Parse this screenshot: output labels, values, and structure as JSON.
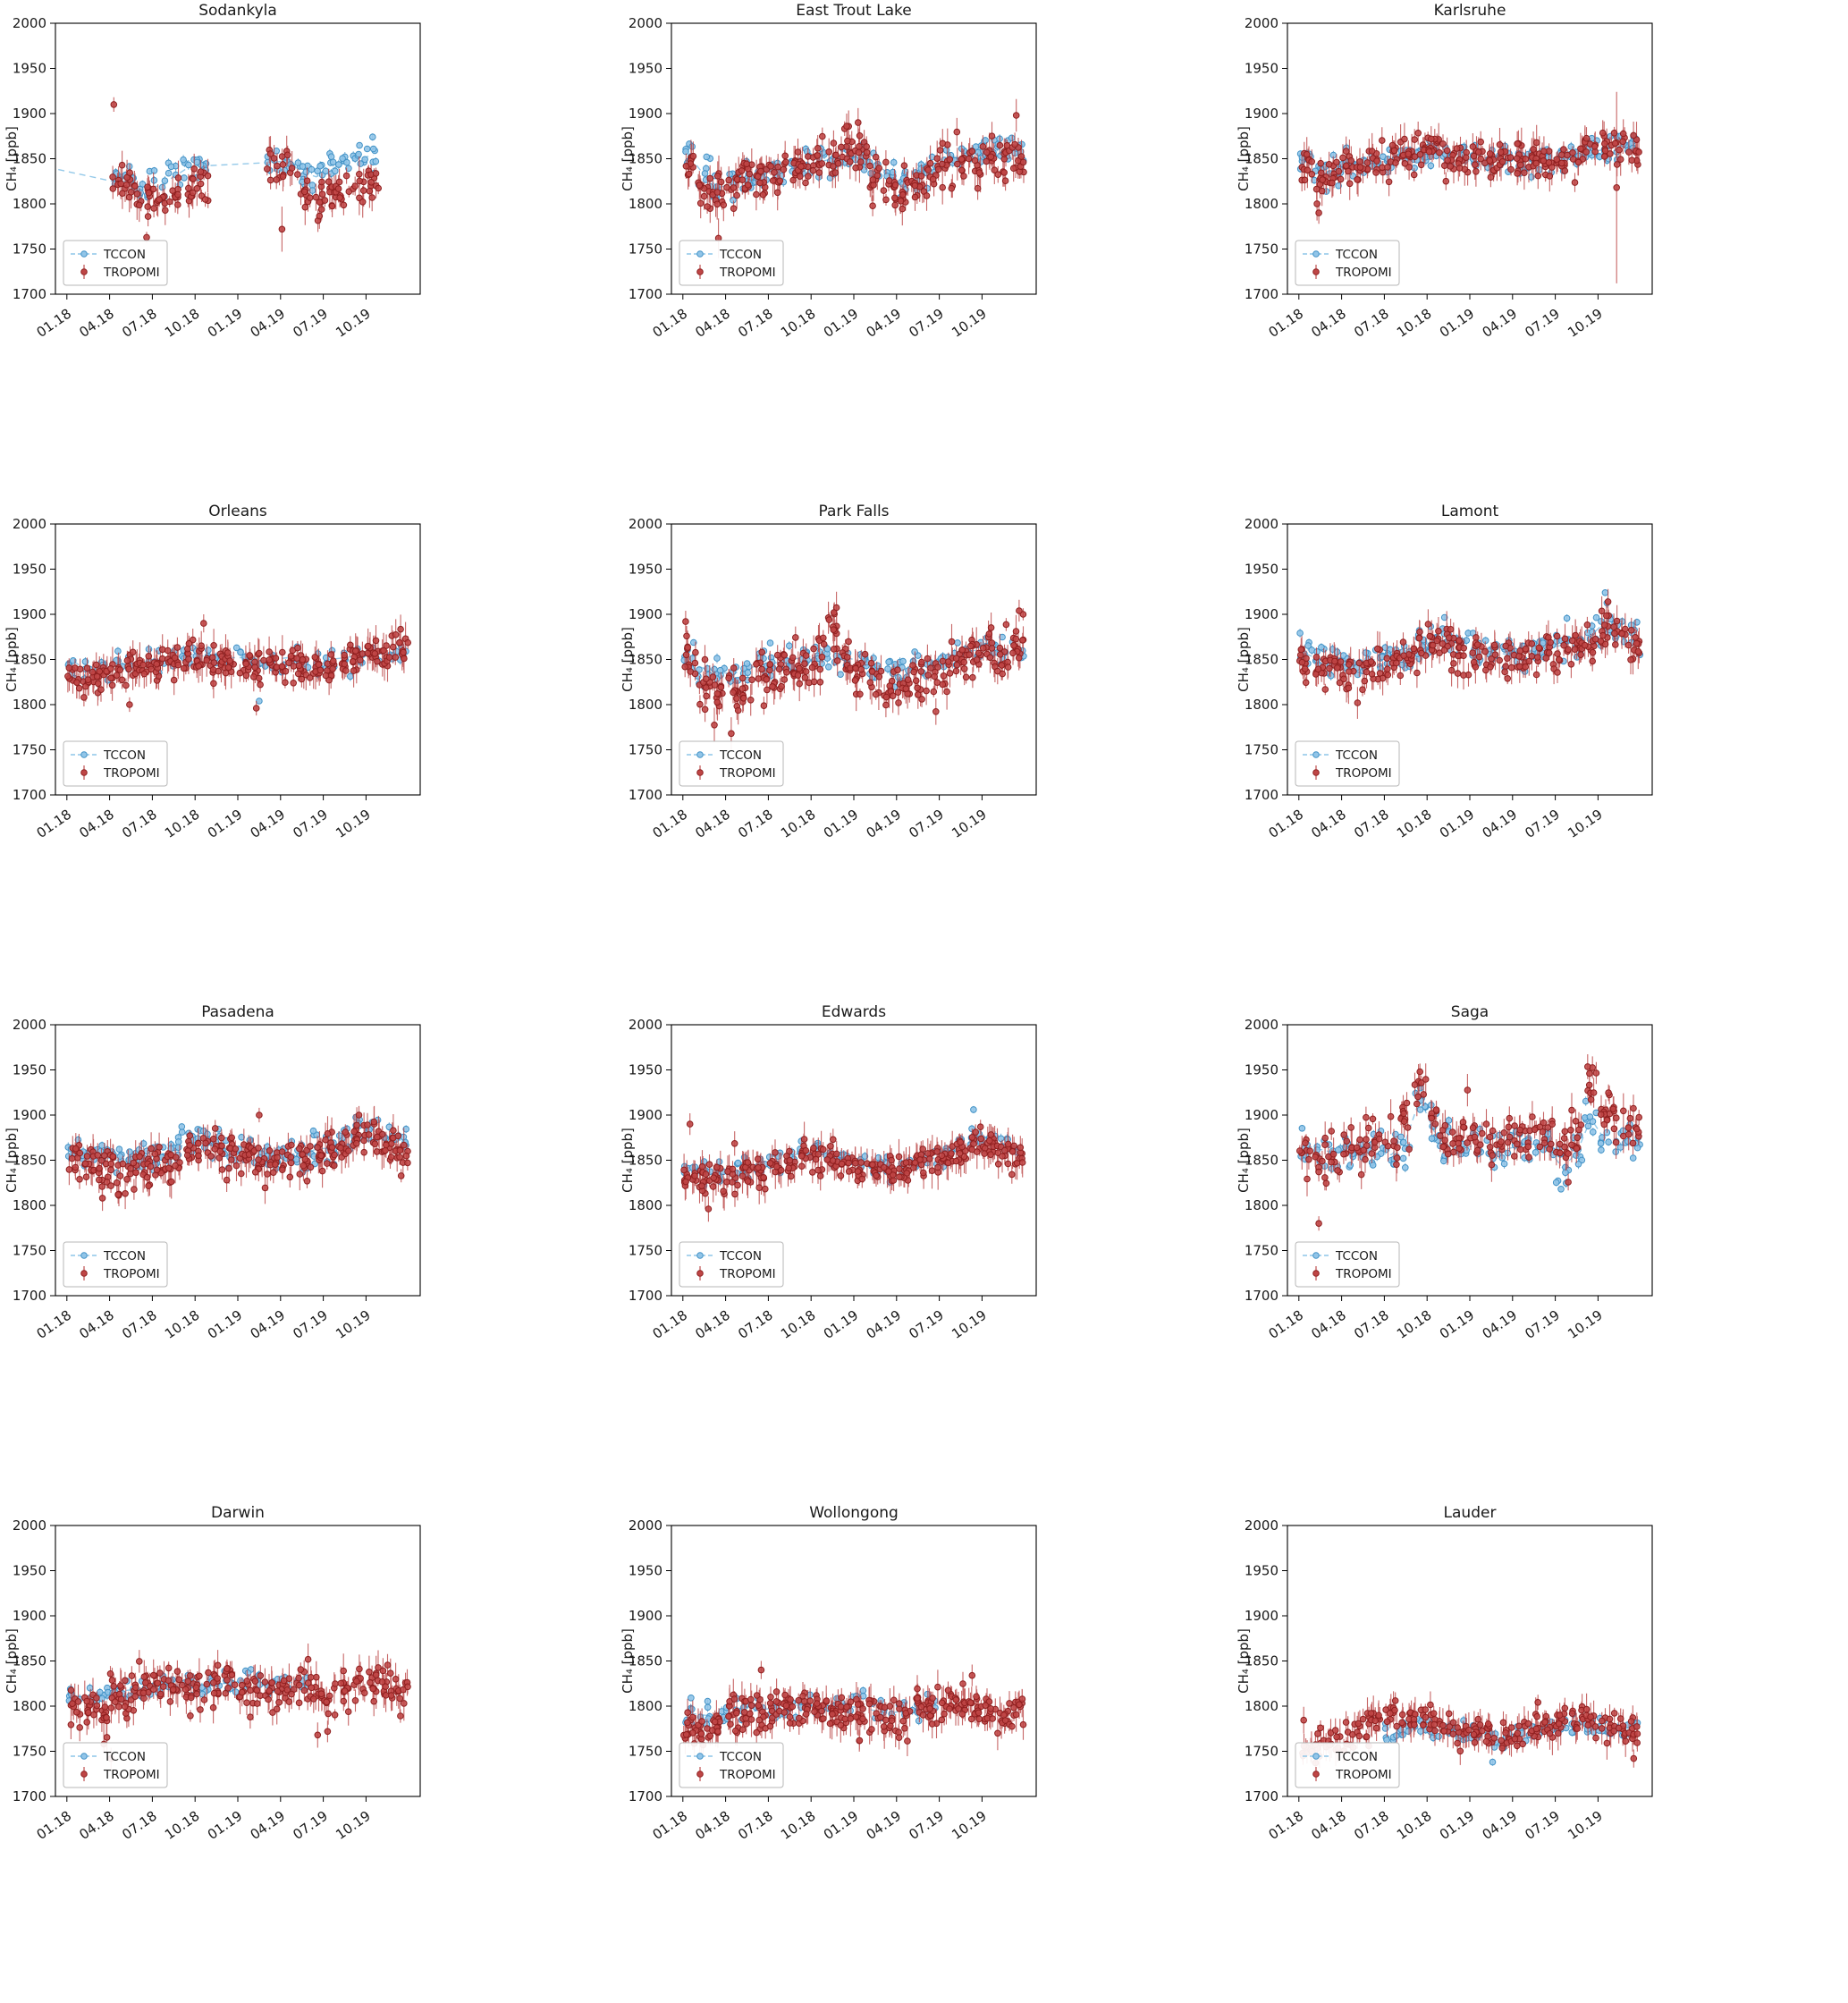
{
  "figure": {
    "background": "#ffffff",
    "rows": 4,
    "cols": 3
  },
  "legend": {
    "tccon_label": "TCCON",
    "tropomi_label": "TROPOMI"
  },
  "chart_data": {
    "type": "scatter",
    "ylabel": "CH₄ [ppb]",
    "ylim": [
      1700,
      2000
    ],
    "yticks": [
      1700,
      1750,
      1800,
      1850,
      1900,
      1950,
      2000
    ],
    "xtick_labels": [
      "01.18",
      "04.18",
      "07.18",
      "10.18",
      "01.19",
      "04.19",
      "07.19",
      "10.19"
    ],
    "xtick_months": [
      0,
      3,
      6,
      9,
      12,
      15,
      18,
      21
    ],
    "x_month_range": [
      -0.8,
      24.8
    ],
    "grid": false,
    "legend_position": "lower-left",
    "series_names": [
      "TCCON",
      "TROPOMI"
    ],
    "colors": {
      "tccon_fill": "#92c5e8",
      "tccon_edge": "#4292c6",
      "tccon_line": "#8ec6e8",
      "tropomi_fill": "#bf4646",
      "tropomi_edge": "#8f1f1f",
      "tropomi_err": "#b94040",
      "axis": "#000000",
      "text": "#1a1a1a"
    },
    "note": "monthly mean CH4 [ppb] per station, index 0 = Jan 2018 .. 23 = Dec 2019; null = no data that month",
    "stations": [
      {
        "name": "Sodankyla",
        "tccon_monthly": [
          null,
          null,
          null,
          1824,
          1826,
          1818,
          1820,
          1830,
          1840,
          1842,
          null,
          null,
          null,
          null,
          1846,
          1848,
          1835,
          1830,
          1838,
          1845,
          1850,
          1854,
          null,
          null
        ],
        "tropomi_monthly": [
          null,
          null,
          null,
          1822,
          1820,
          1808,
          1806,
          1815,
          1822,
          1820,
          null,
          null,
          null,
          null,
          1848,
          1840,
          1815,
          1805,
          1808,
          1815,
          1820,
          1822,
          null,
          null
        ],
        "tccon_sd": 9,
        "tropomi_sd": 11,
        "tccon_n": 9,
        "tropomi_n": 11,
        "line_start": [
          -0.6,
          1838
        ],
        "outliers": [
          {
            "m": 3.3,
            "y": 1910,
            "e": 8
          },
          {
            "m": 5.6,
            "y": 1763,
            "e": 6
          },
          {
            "m": 15.1,
            "y": 1772,
            "e": 25
          }
        ]
      },
      {
        "name": "East Trout Lake",
        "tccon_monthly": [
          1852,
          1832,
          1818,
          1822,
          1828,
          1832,
          1836,
          1840,
          1844,
          1846,
          1850,
          1852,
          1854,
          1846,
          1832,
          1824,
          1828,
          1838,
          1846,
          1852,
          1856,
          1858,
          1860,
          1862
        ],
        "tropomi_monthly": [
          1840,
          1818,
          1812,
          1818,
          1826,
          1830,
          1834,
          1836,
          1840,
          1842,
          1848,
          1862,
          1858,
          1826,
          1812,
          1818,
          1824,
          1834,
          1840,
          1845,
          1848,
          1850,
          1852,
          1848
        ],
        "tccon_sd": 9,
        "tropomi_sd": 12,
        "tccon_n": 10,
        "tropomi_n": 13,
        "outliers": [
          {
            "m": 2.5,
            "y": 1762,
            "e": 22
          },
          {
            "m": 11.5,
            "y": 1886,
            "e": 14
          },
          {
            "m": 12.3,
            "y": 1890,
            "e": 16
          },
          {
            "m": 23.4,
            "y": 1898,
            "e": 18
          }
        ]
      },
      {
        "name": "Karlsruhe",
        "tccon_monthly": [
          1848,
          1832,
          1838,
          1842,
          1845,
          1848,
          1850,
          1852,
          1856,
          1858,
          1854,
          1850,
          1848,
          1846,
          1848,
          1850,
          1852,
          1850,
          1852,
          1855,
          1858,
          1860,
          1864,
          1866
        ],
        "tropomi_monthly": [
          1845,
          1825,
          1835,
          1840,
          1842,
          1846,
          1850,
          1856,
          1858,
          1860,
          1852,
          1850,
          1850,
          1846,
          1848,
          1850,
          1852,
          1850,
          1854,
          1856,
          1862,
          1864,
          1866,
          1858
        ],
        "tccon_sd": 8,
        "tropomi_sd": 10,
        "tccon_n": 10,
        "tropomi_n": 12,
        "outliers": [
          {
            "m": 22.3,
            "y": 1818,
            "e": 106
          },
          {
            "m": 1.4,
            "y": 1790,
            "e": 12
          }
        ]
      },
      {
        "name": "Orleans",
        "tccon_monthly": [
          1848,
          1836,
          1840,
          1843,
          1846,
          1848,
          1850,
          1852,
          1856,
          1854,
          1850,
          1852,
          1852,
          1848,
          1850,
          1852,
          1848,
          1846,
          1850,
          1852,
          1854,
          1856,
          1856,
          1858
        ],
        "tropomi_monthly": [
          1832,
          1828,
          1832,
          1836,
          1840,
          1844,
          1848,
          1850,
          1856,
          1852,
          1845,
          1848,
          1846,
          1840,
          1842,
          1845,
          1842,
          1840,
          1846,
          1850,
          1852,
          1856,
          1855,
          1862
        ],
        "tccon_sd": 7,
        "tropomi_sd": 9,
        "tccon_n": 6,
        "tropomi_n": 13,
        "outliers": [
          {
            "m": 1.2,
            "y": 1808,
            "e": 10
          },
          {
            "m": 4.4,
            "y": 1800,
            "e": 8
          },
          {
            "m": 9.6,
            "y": 1890,
            "e": 10
          },
          {
            "m": 13.3,
            "y": 1796,
            "e": 8
          },
          {
            "m": 13.5,
            "y": 1804,
            "e": 3,
            "series": "tccon"
          }
        ]
      },
      {
        "name": "Park Falls",
        "tccon_monthly": [
          1846,
          1840,
          1836,
          1834,
          1840,
          1844,
          1846,
          1850,
          1852,
          1854,
          1850,
          1852,
          1848,
          1840,
          1836,
          1838,
          1842,
          1848,
          1852,
          1858,
          1860,
          1862,
          1858,
          1862
        ],
        "tropomi_monthly": [
          1852,
          1828,
          1812,
          1812,
          1820,
          1830,
          1838,
          1842,
          1844,
          1850,
          1876,
          1848,
          1838,
          1824,
          1814,
          1820,
          1828,
          1838,
          1848,
          1855,
          1858,
          1860,
          1852,
          1868
        ],
        "tccon_sd": 8,
        "tropomi_sd": 13,
        "tccon_n": 8,
        "tropomi_n": 13,
        "outliers": [
          {
            "m": 0.2,
            "y": 1892,
            "e": 12
          },
          {
            "m": 10.6,
            "y": 1902,
            "e": 10
          },
          {
            "m": 3.4,
            "y": 1768,
            "e": 18
          },
          {
            "m": 23.6,
            "y": 1904,
            "e": 12
          }
        ]
      },
      {
        "name": "Lamont",
        "tccon_monthly": [
          1856,
          1850,
          1846,
          1845,
          1848,
          1850,
          1854,
          1858,
          1866,
          1870,
          1872,
          1866,
          1862,
          1858,
          1856,
          1858,
          1860,
          1862,
          1866,
          1870,
          1876,
          1892,
          1882,
          1876
        ],
        "tropomi_monthly": [
          1846,
          1840,
          1836,
          1835,
          1838,
          1842,
          1848,
          1854,
          1862,
          1866,
          1862,
          1858,
          1856,
          1850,
          1848,
          1850,
          1855,
          1858,
          1862,
          1866,
          1872,
          1886,
          1878,
          1862
        ],
        "tccon_sd": 9,
        "tropomi_sd": 10,
        "tccon_n": 10,
        "tropomi_n": 12,
        "outliers": [
          {
            "m": 21.5,
            "y": 1924,
            "e": 3,
            "series": "tccon"
          },
          {
            "m": 21.7,
            "y": 1914,
            "e": 14
          }
        ]
      },
      {
        "name": "Pasadena",
        "tccon_monthly": [
          1862,
          1856,
          1854,
          1850,
          1850,
          1852,
          1856,
          1858,
          1872,
          1874,
          1868,
          1860,
          1858,
          1854,
          1852,
          1856,
          1858,
          1862,
          1864,
          1872,
          1888,
          1884,
          1876,
          1872
        ],
        "tropomi_monthly": [
          1854,
          1844,
          1840,
          1838,
          1840,
          1842,
          1846,
          1848,
          1864,
          1866,
          1860,
          1854,
          1852,
          1848,
          1845,
          1848,
          1852,
          1856,
          1860,
          1866,
          1880,
          1876,
          1868,
          1860
        ],
        "tccon_sd": 9,
        "tropomi_sd": 11,
        "tccon_n": 10,
        "tropomi_n": 13,
        "outliers": [
          {
            "m": 2.5,
            "y": 1808,
            "e": 14
          },
          {
            "m": 3.6,
            "y": 1812,
            "e": 10
          },
          {
            "m": 13.5,
            "y": 1900,
            "e": 8
          },
          {
            "m": 20.5,
            "y": 1900,
            "e": 10
          }
        ]
      },
      {
        "name": "Edwards",
        "tccon_monthly": [
          1840,
          1836,
          1834,
          1838,
          1840,
          1842,
          1846,
          1852,
          1862,
          1858,
          1854,
          1852,
          1848,
          1844,
          1842,
          1845,
          1848,
          1852,
          1856,
          1862,
          1876,
          1872,
          1866,
          1862
        ],
        "tropomi_monthly": [
          1836,
          1830,
          1828,
          1832,
          1835,
          1838,
          1842,
          1850,
          1858,
          1854,
          1850,
          1846,
          1844,
          1840,
          1838,
          1840,
          1845,
          1848,
          1852,
          1860,
          1870,
          1866,
          1860,
          1856
        ],
        "tccon_sd": 7,
        "tropomi_sd": 9,
        "tccon_n": 8,
        "tropomi_n": 13,
        "outliers": [
          {
            "m": 0.5,
            "y": 1890,
            "e": 12
          },
          {
            "m": 1.8,
            "y": 1796,
            "e": 14
          },
          {
            "m": 20.4,
            "y": 1906,
            "e": 4,
            "series": "tccon"
          }
        ]
      },
      {
        "name": "Saga",
        "tccon_monthly": [
          1866,
          1862,
          1858,
          1860,
          1862,
          1858,
          1856,
          1872,
          1918,
          1882,
          1866,
          1862,
          1868,
          1864,
          1862,
          1866,
          1868,
          1862,
          1842,
          1858,
          1896,
          1872,
          1866,
          1868
        ],
        "tropomi_monthly": [
          1856,
          1850,
          1855,
          1862,
          1870,
          1878,
          1874,
          1886,
          1932,
          1886,
          1872,
          1874,
          1876,
          1870,
          1868,
          1872,
          1878,
          1880,
          1864,
          1876,
          1936,
          1906,
          1896,
          1882
        ],
        "tccon_sd": 11,
        "tropomi_sd": 13,
        "tccon_n": 9,
        "tropomi_n": 11,
        "outliers": [
          {
            "m": 1.4,
            "y": 1780,
            "e": 8
          },
          {
            "m": 8.5,
            "y": 1948,
            "e": 9
          },
          {
            "m": 20.4,
            "y": 1946,
            "e": 8
          },
          {
            "m": 18.4,
            "y": 1818,
            "e": 3,
            "series": "tccon"
          }
        ]
      },
      {
        "name": "Darwin",
        "tccon_monthly": [
          1812,
          1808,
          1812,
          1816,
          1818,
          1820,
          1822,
          1824,
          1824,
          1822,
          1824,
          1826,
          1828,
          1826,
          1824,
          1826,
          1826,
          null,
          null,
          null,
          null,
          null,
          null,
          null
        ],
        "tropomi_monthly": [
          1800,
          1794,
          1792,
          1812,
          1816,
          1820,
          1822,
          1820,
          1818,
          1820,
          1822,
          1824,
          1822,
          1818,
          1812,
          1816,
          1820,
          1815,
          1810,
          1820,
          1824,
          1826,
          1824,
          1818
        ],
        "tccon_sd": 6,
        "tropomi_sd": 11,
        "tccon_n": 8,
        "tropomi_n": 13,
        "outliers": [
          {
            "m": 2.6,
            "y": 1758,
            "e": 10
          },
          {
            "m": 3.1,
            "y": 1742,
            "e": 12
          },
          {
            "m": 17.6,
            "y": 1768,
            "e": 14
          },
          {
            "m": 18.3,
            "y": 1772,
            "e": 12
          }
        ]
      },
      {
        "name": "Wollongong",
        "tccon_monthly": [
          1792,
          1790,
          1788,
          1790,
          1793,
          1796,
          1798,
          1800,
          1802,
          1800,
          1798,
          1800,
          1798,
          1795,
          1792,
          1795,
          1798,
          1800,
          null,
          null,
          null,
          null,
          null,
          null
        ],
        "tropomi_monthly": [
          1778,
          1776,
          1782,
          1788,
          1792,
          1796,
          1798,
          1800,
          1798,
          1796,
          1792,
          1795,
          1792,
          1790,
          1788,
          1790,
          1795,
          1798,
          1800,
          1798,
          1795,
          1792,
          1790,
          1794
        ],
        "tccon_sd": 7,
        "tropomi_sd": 10,
        "tccon_n": 6,
        "tropomi_n": 14,
        "outliers": [
          {
            "m": 5.5,
            "y": 1840,
            "e": 10
          },
          {
            "m": 12.4,
            "y": 1762,
            "e": 10
          },
          {
            "m": 20.3,
            "y": 1834,
            "e": 12
          }
        ]
      },
      {
        "name": "Lauder",
        "tccon_monthly": [
          null,
          null,
          null,
          null,
          null,
          null,
          1768,
          1772,
          1776,
          1774,
          1772,
          1770,
          1768,
          1766,
          1764,
          1768,
          1772,
          1775,
          1778,
          1780,
          1778,
          1776,
          1772,
          1775
        ],
        "tropomi_monthly": [
          1756,
          1752,
          1758,
          1766,
          1776,
          1786,
          1790,
          1788,
          1784,
          1780,
          1776,
          1772,
          1770,
          1768,
          1766,
          1770,
          1774,
          1778,
          1782,
          1786,
          1780,
          1778,
          1774,
          1770
        ],
        "tccon_sd": 6,
        "tropomi_sd": 9,
        "tccon_n": 8,
        "tropomi_n": 11,
        "outliers": [
          {
            "m": 0.3,
            "y": 1745,
            "e": 10
          },
          {
            "m": 23.5,
            "y": 1742,
            "e": 10
          },
          {
            "m": 13.6,
            "y": 1738,
            "e": 4,
            "series": "tccon"
          }
        ]
      }
    ]
  }
}
